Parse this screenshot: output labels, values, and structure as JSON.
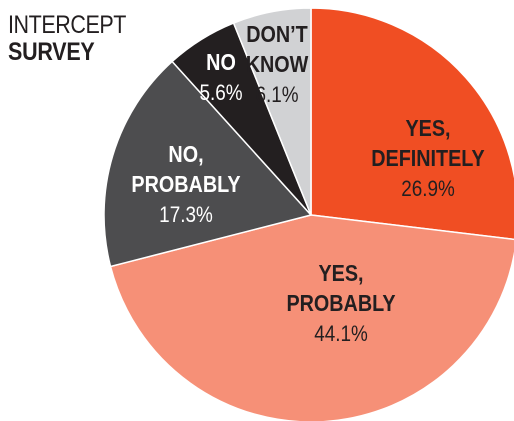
{
  "title": {
    "line1": "INTERCEPT",
    "line2": "SURVEY"
  },
  "chart_data": {
    "type": "pie",
    "start": "12 o'clock",
    "direction": "clockwise",
    "slices": [
      {
        "label": [
          "YES,",
          "DEFINITELY"
        ],
        "value": 26.9,
        "value_label": "26.9%",
        "color": "#f04e23",
        "label_color": "#231f20",
        "pct_color": "#231f20"
      },
      {
        "label": [
          "YES,",
          "PROBABLY"
        ],
        "value": 44.1,
        "value_label": "44.1%",
        "color": "#f69077",
        "label_color": "#231f20",
        "pct_color": "#231f20"
      },
      {
        "label": [
          "NO,",
          "PROBABLY"
        ],
        "value": 17.3,
        "value_label": "17.3%",
        "color": "#4d4d4f",
        "label_color": "#ffffff",
        "pct_color": "#ffffff"
      },
      {
        "label": [
          "NO"
        ],
        "value": 5.6,
        "value_label": "5.6%",
        "color": "#231f20",
        "label_color": "#ffffff",
        "pct_color": "#ffffff"
      },
      {
        "label": [
          "DON’T",
          "KNOW"
        ],
        "value": 6.1,
        "value_label": "6.1%",
        "color": "#d1d2d4",
        "label_color": "#231f20",
        "pct_color": "#231f20"
      }
    ]
  }
}
